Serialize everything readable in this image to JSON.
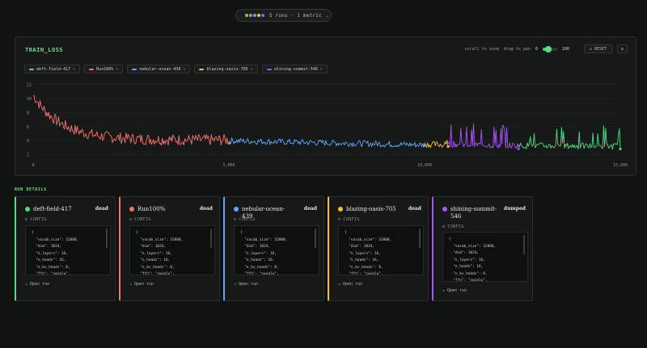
{
  "header": {
    "summary": "5 runs · 1 metric",
    "chevron": "⌄",
    "dot_colors": [
      "#4ade80",
      "#f87171",
      "#60a5fa",
      "#fbbf24",
      "#a855f7"
    ]
  },
  "panel": {
    "title": "TRAIN_LOSS",
    "scroll_hint": "scroll to zoom",
    "drag_hint": "drag to pan",
    "slider_min": "0",
    "slider_max": "100",
    "reset_label": "↺ RESET",
    "close_label": "×"
  },
  "legend": [
    {
      "name": "deft-field-417",
      "color": "#4ade80",
      "edit": "✎"
    },
    {
      "name": "Run100%",
      "color": "#f87171",
      "edit": "✎"
    },
    {
      "name": "nebular-ocean-439",
      "color": "#60a5fa",
      "edit": "✎"
    },
    {
      "name": "blazing-oasis-705",
      "color": "#fbbf24",
      "edit": "✎"
    },
    {
      "name": "shining-summit-546",
      "color": "#a855f7",
      "edit": "✎"
    }
  ],
  "chart_data": {
    "type": "line",
    "title": "TRAIN_LOSS",
    "xlabel": "",
    "ylabel": "",
    "xlim": [
      0,
      15000
    ],
    "ylim": [
      1.5,
      12.3
    ],
    "x_ticks": [
      "0",
      "5,000",
      "10,000",
      "15,000"
    ],
    "x_tick_values": [
      0,
      5000,
      10000,
      15000
    ],
    "y_ticks": [
      "2",
      "4",
      "6",
      "8",
      "10",
      "12"
    ],
    "y_tick_values": [
      2,
      4,
      6,
      8,
      10,
      12
    ],
    "grid": true,
    "series": [
      {
        "name": "Run100%",
        "color": "#f87171",
        "x_range": [
          0,
          5000
        ],
        "start": 10.5,
        "end": 4.1
      },
      {
        "name": "nebular-ocean-439",
        "color": "#60a5fa",
        "x_range": [
          5000,
          10000
        ],
        "start": 4.0,
        "end": 3.4
      },
      {
        "name": "blazing-oasis-705",
        "color": "#fbbf24",
        "x_range": [
          10000,
          10600
        ],
        "start": 3.5,
        "end": 3.4
      },
      {
        "name": "shining-summit-546",
        "color": "#a855f7",
        "x_range": [
          10600,
          12400
        ],
        "start": 3.5,
        "end": 3.3
      },
      {
        "name": "deft-field-417",
        "color": "#4ade80",
        "x_range": [
          12400,
          15000
        ],
        "start": 3.3,
        "end": 3.2
      }
    ]
  },
  "run_details": {
    "title": "RUN DETAILS",
    "config_label": "CONFIG",
    "config_icon": "⚙",
    "open_label": "Open run",
    "open_icon": "↗",
    "config_lines": [
      "{",
      "  \"vocab_size\": 32000,",
      "  \"dim\": 1024,",
      "  \"n_layers\": 16,",
      "  \"n_heads\": 16,",
      "  \"n_kv_heads\": 8,",
      "  \"ffn\": \"swiglu\","
    ],
    "runs": [
      {
        "name": "deft-field-417",
        "status": "dead",
        "color": "#4ade80"
      },
      {
        "name": "Run100%",
        "status": "dead",
        "color": "#f87171"
      },
      {
        "name": "nebular-ocean-439",
        "status": "dead",
        "color": "#60a5fa"
      },
      {
        "name": "blazing-oasis-705",
        "status": "dead",
        "color": "#fbbf24"
      },
      {
        "name": "shining-summit-546",
        "status": "dumped",
        "color": "#a855f7"
      }
    ]
  }
}
